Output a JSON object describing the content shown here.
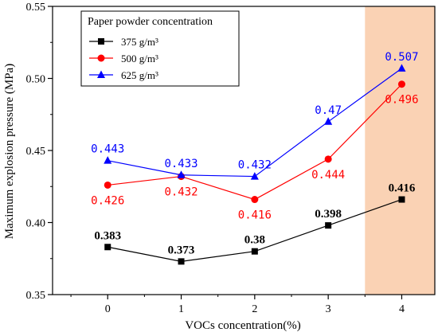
{
  "chart_data": {
    "type": "line",
    "xlabel": "VOCs concentration(%)",
    "ylabel": "Maximum explosion pressure (MPa)",
    "x": [
      0,
      1,
      2,
      3,
      4
    ],
    "x_tick_labels": [
      "0",
      "1",
      "2",
      "3",
      "4"
    ],
    "xlim": [
      -0.75,
      4.45
    ],
    "ylim": [
      0.35,
      0.55
    ],
    "y_ticks": [
      0.35,
      0.4,
      0.45,
      0.5,
      0.55
    ],
    "y_tick_labels": [
      "0.35",
      "0.40",
      "0.45",
      "0.50",
      "0.55"
    ],
    "grid": false,
    "highlight_region": {
      "x_from": 3.5,
      "x_to": 4.45,
      "color": "#fad2b4"
    },
    "legend": {
      "title": "Paper powder concentration",
      "position": "top-left"
    },
    "series": [
      {
        "name": "375 g/m³",
        "color": "#000000",
        "marker": "square",
        "values": [
          0.383,
          0.373,
          0.38,
          0.398,
          0.416
        ],
        "labels": [
          "0.383",
          "0.373",
          "0.38",
          "0.398",
          "0.416"
        ],
        "label_position": "above"
      },
      {
        "name": "500 g/m³",
        "color": "#ff0000",
        "marker": "circle",
        "values": [
          0.426,
          0.432,
          0.416,
          0.444,
          0.496
        ],
        "labels": [
          "0.426",
          "0.432",
          "0.416",
          "0.444",
          "0.496"
        ],
        "label_position": "below"
      },
      {
        "name": "625 g/m³",
        "color": "#0000ff",
        "marker": "triangle",
        "values": [
          0.443,
          0.433,
          0.432,
          0.47,
          0.507
        ],
        "labels": [
          "0.443",
          "0.433",
          "0.432",
          "0.47",
          "0.507"
        ],
        "label_position": "above"
      }
    ]
  }
}
